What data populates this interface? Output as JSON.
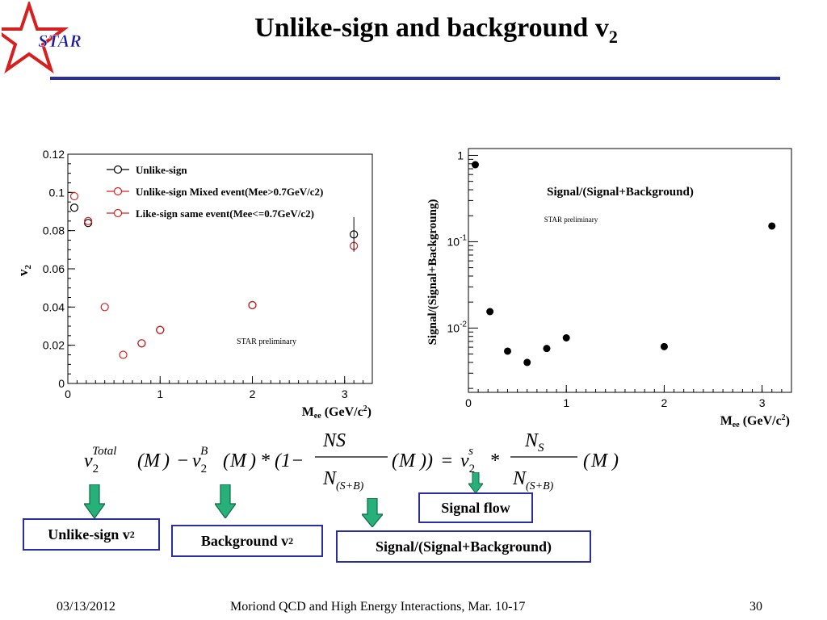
{
  "slide": {
    "title": "Unlike-sign and background v",
    "title_sub": "2",
    "logo_text": "STAR",
    "accent_color": "#2b2f9e",
    "footer": {
      "date": "03/13/2012",
      "event": "Moriond QCD and High Energy Interactions, Mar. 10-17",
      "page": "30"
    }
  },
  "chart_data": [
    {
      "type": "scatter",
      "ylabel": "v2",
      "xlabel": "Mee (GeV/c2)",
      "xlim": [
        0,
        3.3
      ],
      "ylim": [
        0,
        0.12
      ],
      "xticks": [
        "0",
        "1",
        "2",
        "3"
      ],
      "yticks": [
        "0",
        "0.02",
        "0.04",
        "0.06",
        "0.08",
        "0.1",
        "0.12"
      ],
      "annotation": "STAR preliminary",
      "legend_position": "top-left",
      "series": [
        {
          "name": "Unlike-sign",
          "color": "#000000",
          "marker": "open-circle",
          "x": [
            0.07,
            0.22,
            0.8,
            1.0,
            2.0,
            3.1
          ],
          "y": [
            0.092,
            0.084,
            0.021,
            0.028,
            0.041,
            0.078
          ]
        },
        {
          "name": "Unlike-sign Mixed event(Mee>0.7GeV/c2)",
          "color": "#d62020",
          "marker": "open-circle",
          "x": [
            0.8,
            1.0,
            2.0,
            3.1
          ],
          "y": [
            0.021,
            0.028,
            0.041,
            0.072
          ]
        },
        {
          "name": "Like-sign same event(Mee<=0.7GeV/c2)",
          "color": "#d62020",
          "marker": "open-circle",
          "x": [
            0.07,
            0.22,
            0.4,
            0.6
          ],
          "y": [
            0.098,
            0.085,
            0.04,
            0.015
          ]
        }
      ]
    },
    {
      "type": "scatter",
      "ylabel": "Signal/(Signal+Backgroung)",
      "xlabel": "Mee (GeV/c2)",
      "yscale": "log",
      "xlim": [
        0,
        3.3
      ],
      "ylim": [
        0.0018,
        1.2
      ],
      "xticks": [
        "0",
        "1",
        "2",
        "3"
      ],
      "yticks": [
        "1",
        "10-1",
        "10-2"
      ],
      "title": "Signal/(Signal+Background)",
      "annotation": "STAR preliminary",
      "series": [
        {
          "color": "#000000",
          "marker": "filled-circle",
          "x": [
            0.07,
            0.22,
            0.4,
            0.6,
            0.8,
            1.0,
            2.0,
            3.1
          ],
          "y": [
            0.78,
            0.0155,
            0.0054,
            0.004,
            0.0058,
            0.0077,
            0.0061,
            0.152
          ]
        }
      ]
    }
  ],
  "equation": {
    "v": "v",
    "two": "2",
    "total": "Total",
    "B": "B",
    "s": "s",
    "M": "M",
    "NS": "N",
    "S": "S",
    "N": "N",
    "SB": "(S+B)",
    "minus": "−",
    "star": "*",
    "one": "(1−",
    "eq": "="
  },
  "labels": {
    "unlike_sign": "Unlike-sign v",
    "unlike_sub": "2",
    "background": "Background v",
    "background_sub": "2",
    "sig_ratio": "Signal/(Signal+Background)",
    "signal_flow": "Signal flow"
  }
}
